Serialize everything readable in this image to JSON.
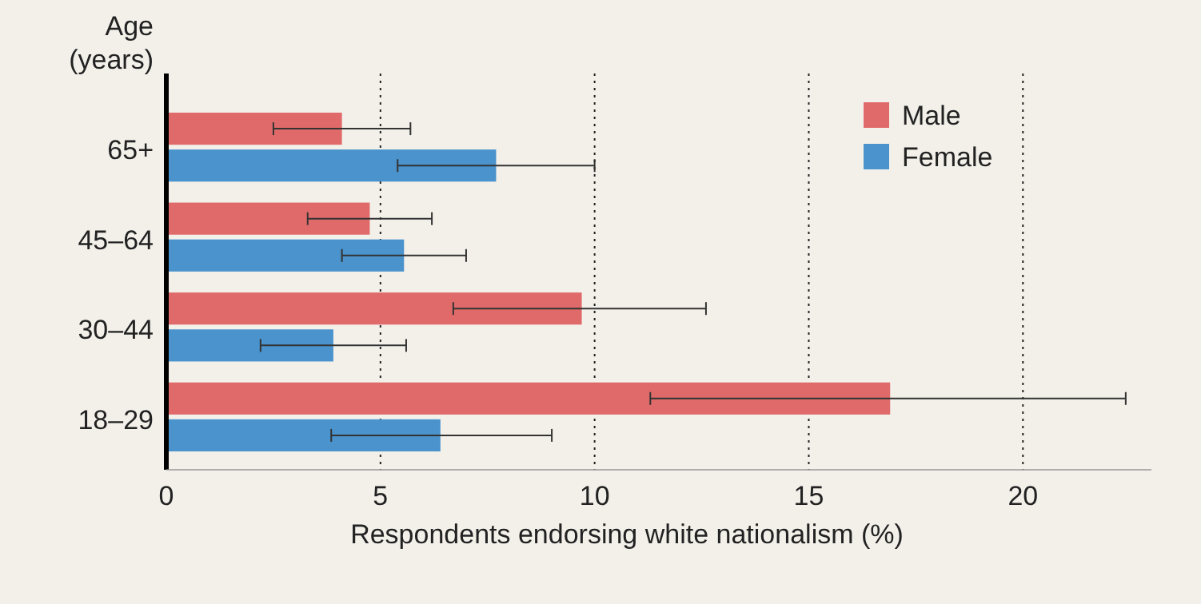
{
  "chart_data": {
    "type": "bar",
    "orientation": "horizontal",
    "ylabel": "Age\n(years)",
    "xlabel": "Respondents endorsing white nationalism (%)",
    "categories": [
      "65+",
      "45–64",
      "30–44",
      "18–29"
    ],
    "series": [
      {
        "name": "Male",
        "color": "#e06a6a",
        "values": [
          4.1,
          4.75,
          9.7,
          16.9
        ],
        "errors": [
          [
            2.5,
            5.7
          ],
          [
            3.3,
            6.2
          ],
          [
            6.7,
            12.6
          ],
          [
            11.3,
            22.4
          ]
        ]
      },
      {
        "name": "Female",
        "color": "#4a93cc",
        "values": [
          7.7,
          5.55,
          3.9,
          6.4
        ],
        "errors": [
          [
            5.4,
            10.0
          ],
          [
            4.1,
            7.0
          ],
          [
            2.2,
            5.6
          ],
          [
            3.85,
            9.0
          ]
        ]
      }
    ],
    "xlim": [
      0,
      23
    ],
    "xticks": [
      0,
      5,
      10,
      15,
      20
    ],
    "grid": "x",
    "legend": "top right"
  }
}
